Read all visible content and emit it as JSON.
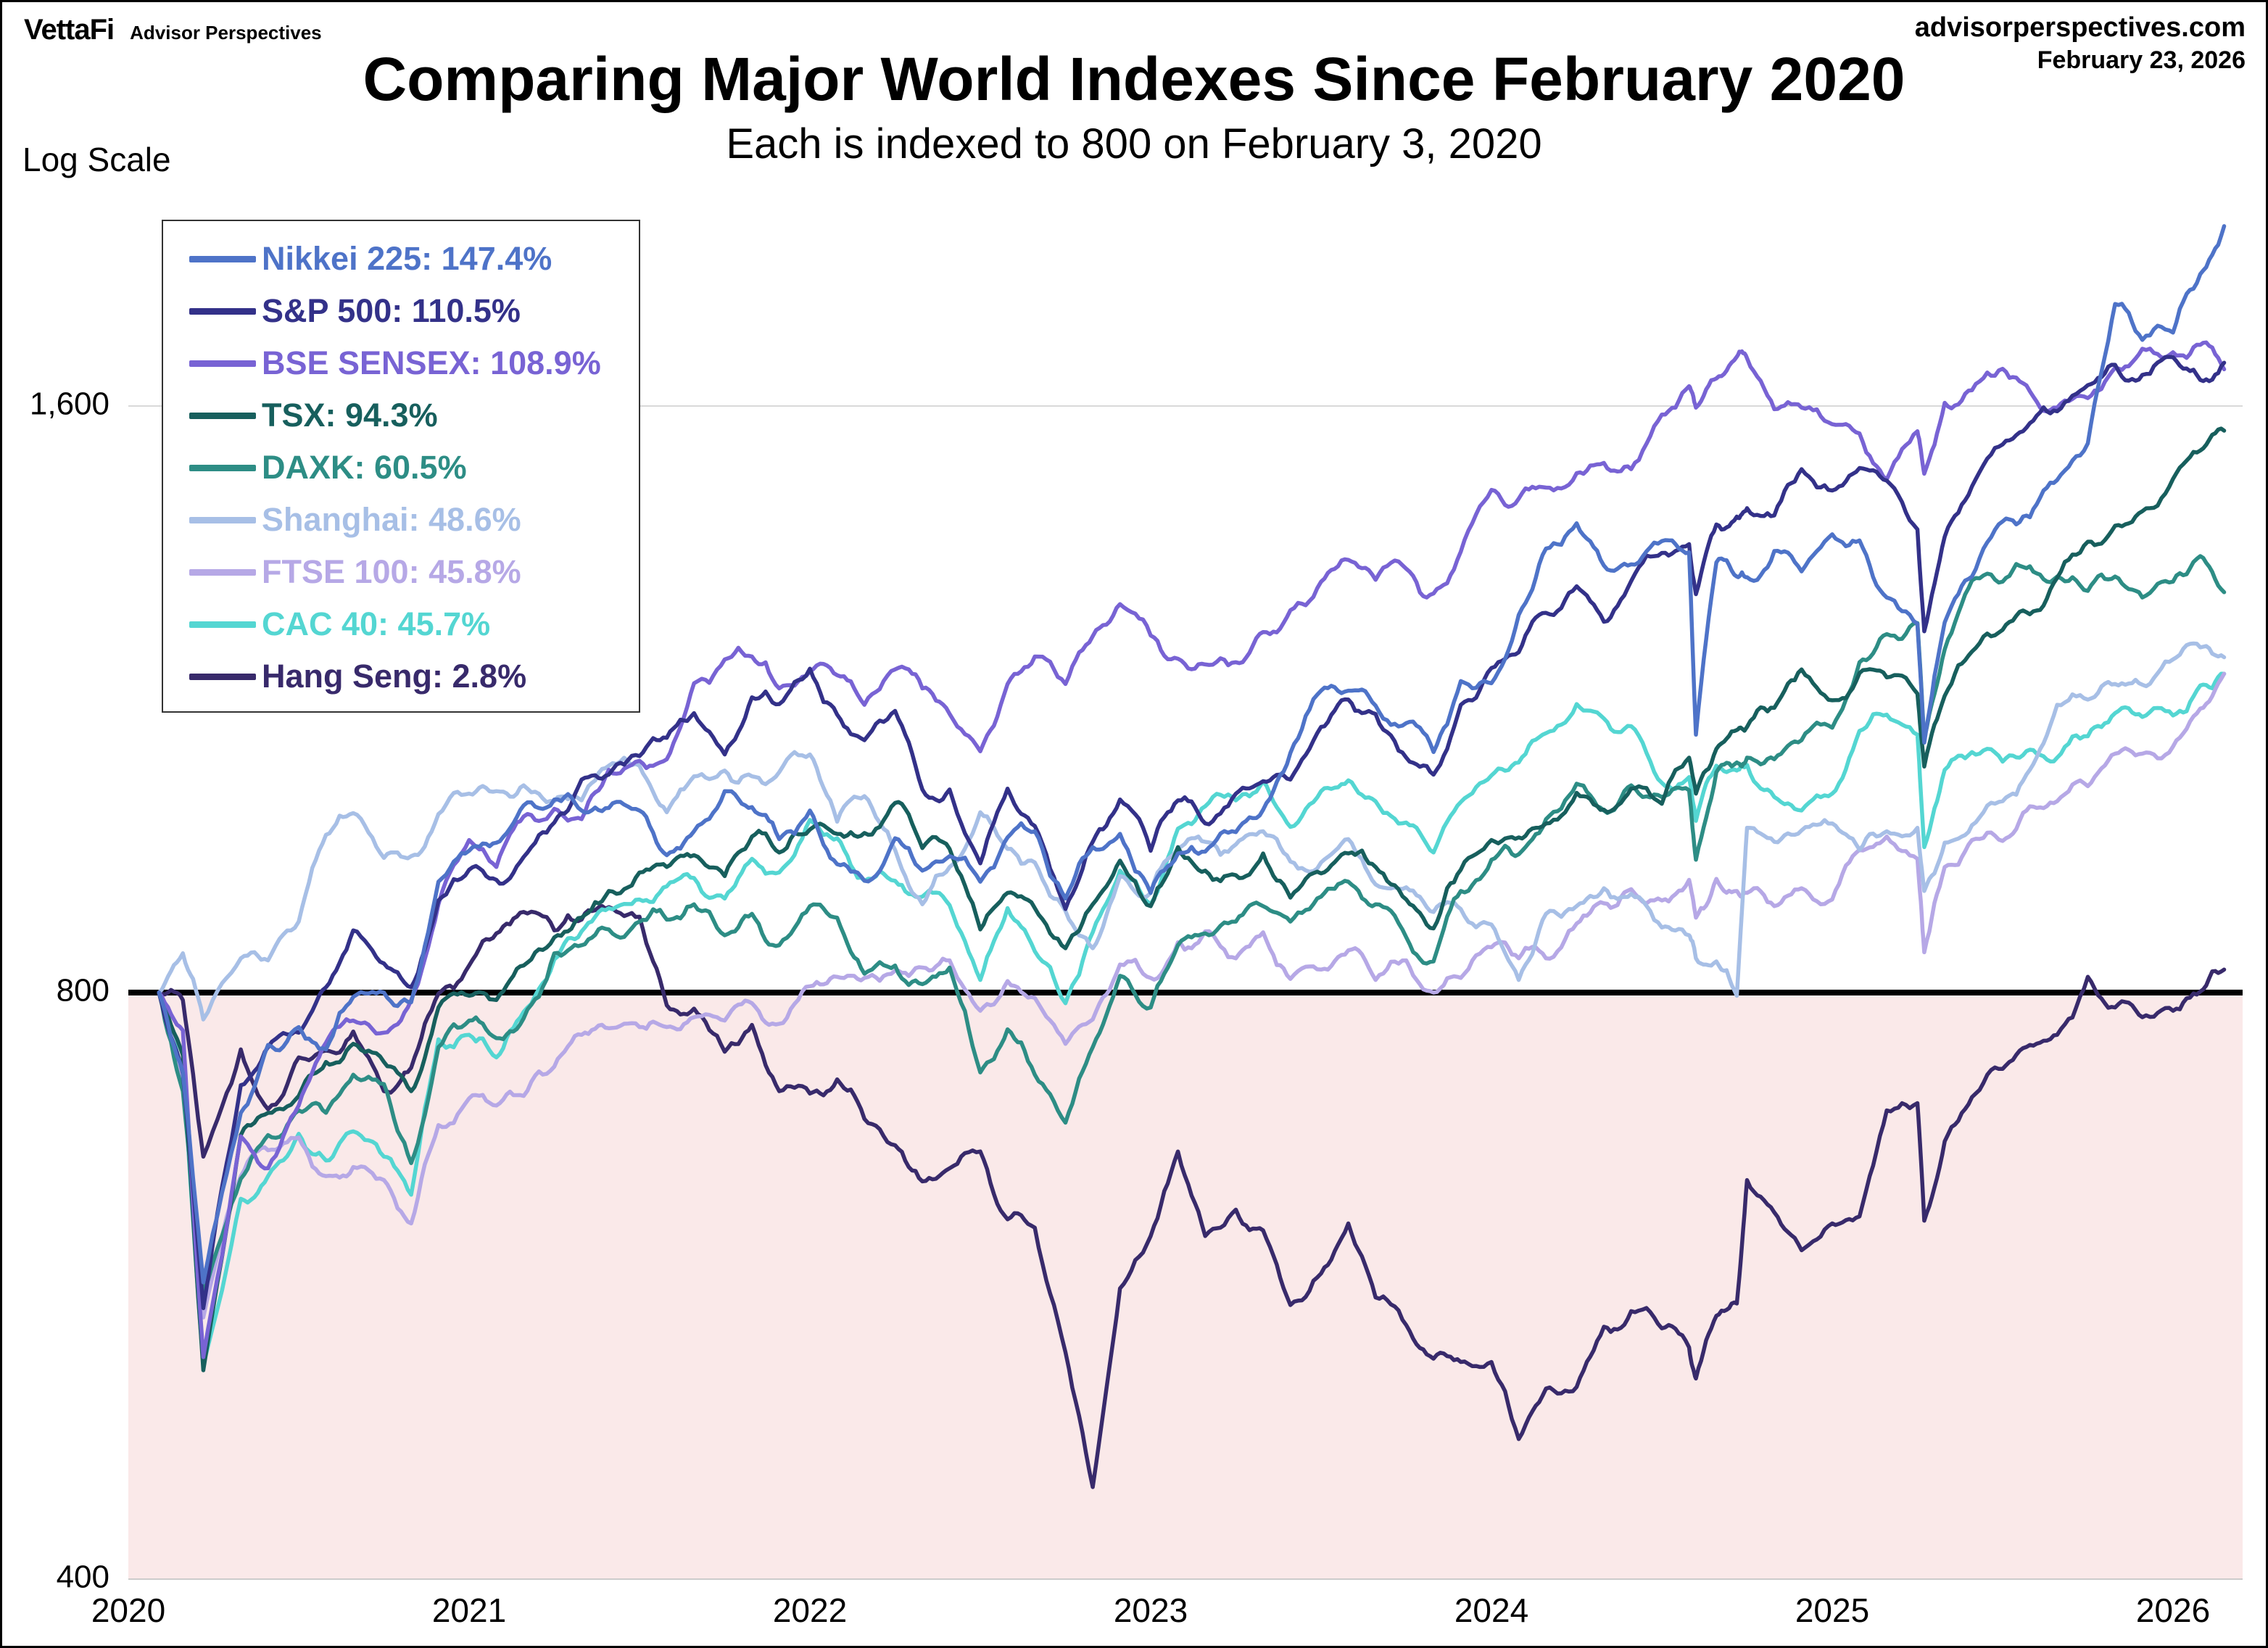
{
  "header": {
    "logo_primary": "VettaFi",
    "logo_secondary": "Advisor Perspectives",
    "site": "advisorperspectives.com",
    "date": "February 23, 2026",
    "title": "Comparing Major World Indexes Since February 2020",
    "subtitle": "Each is indexed to 800 on February 3, 2020",
    "scale_label": "Log Scale"
  },
  "chart_data": {
    "type": "line",
    "y_scale": "log",
    "title": "Comparing Major World Indexes Since February 2020",
    "subtitle": "Each is indexed to 800 on February 3, 2020",
    "baseline": 800,
    "baseline_color": "#000000",
    "below_baseline_fill": "#fae9e9",
    "grid_color": "#d9d9d9",
    "ylim": [
      400,
      2200
    ],
    "legend_position": "top-left",
    "y_ticks": [
      {
        "label": "1,600",
        "value": 1600
      },
      {
        "label": "800",
        "value": 800
      },
      {
        "label": "400",
        "value": 400
      }
    ],
    "x_ticks": [
      {
        "label": "2020",
        "value": 2020
      },
      {
        "label": "2021",
        "value": 2021
      },
      {
        "label": "2022",
        "value": 2022
      },
      {
        "label": "2023",
        "value": 2023
      },
      {
        "label": "2024",
        "value": 2024
      },
      {
        "label": "2025",
        "value": 2025
      },
      {
        "label": "2026",
        "value": 2026
      }
    ],
    "x_years": [
      2020.09,
      2020.16,
      2020.22,
      2020.33,
      2020.41,
      2020.5,
      2020.58,
      2020.66,
      2020.75,
      2020.83,
      2020.91,
      2021.0,
      2021.08,
      2021.16,
      2021.25,
      2021.33,
      2021.41,
      2021.5,
      2021.58,
      2021.66,
      2021.75,
      2021.83,
      2021.91,
      2022.0,
      2022.08,
      2022.16,
      2022.25,
      2022.33,
      2022.41,
      2022.5,
      2022.58,
      2022.66,
      2022.75,
      2022.83,
      2022.91,
      2023.0,
      2023.08,
      2023.16,
      2023.25,
      2023.33,
      2023.41,
      2023.5,
      2023.58,
      2023.66,
      2023.75,
      2023.83,
      2023.91,
      2024.0,
      2024.08,
      2024.16,
      2024.25,
      2024.33,
      2024.41,
      2024.5,
      2024.58,
      2024.6,
      2024.66,
      2024.72,
      2024.75,
      2024.83,
      2024.91,
      2025.0,
      2025.08,
      2025.16,
      2025.25,
      2025.27,
      2025.33,
      2025.41,
      2025.5,
      2025.58,
      2025.66,
      2025.75,
      2025.83,
      2025.91,
      2026.0,
      2026.08,
      2026.15
    ],
    "series": [
      {
        "name": "Nikkei 225",
        "change": "147.4%",
        "label": "Nikkei 225: 147.4%",
        "color": "#4e73c8",
        "values": [
          800,
          728,
          568,
          694,
          752,
          768,
          748,
          796,
          800,
          791,
          912,
          946,
          955,
          998,
          1005,
          992,
          995,
          992,
          941,
          968,
          1015,
          996,
          959,
          992,
          931,
          913,
          960,
          924,
          940,
          912,
          961,
          968,
          894,
          950,
          965,
          900,
          943,
          945,
          967,
          993,
          1062,
          1143,
          1143,
          1123,
          1100,
          1063,
          1156,
          1153,
          1250,
          1352,
          1393,
          1325,
          1327,
          1364,
          1346,
          1085,
          1330,
          1308,
          1307,
          1348,
          1316,
          1375,
          1365,
          1276,
          1237,
          1075,
          1239,
          1308,
          1396,
          1403,
          1466,
          1531,
          1805,
          1730,
          1745,
          1870,
          1979
        ]
      },
      {
        "name": "S&P 500",
        "change": "110.5%",
        "label": "S&P 500: 110.5%",
        "color": "#333189",
        "values": [
          800,
          727,
          551,
          717,
          750,
          763,
          805,
          861,
          828,
          805,
          892,
          925,
          914,
          939,
          978,
          1029,
          1035,
          1058,
          1081,
          1113,
          1060,
          1134,
          1125,
          1173,
          1111,
          1078,
          1116,
          1017,
          1017,
          932,
          1018,
          974,
          883,
          956,
          1005,
          946,
          1004,
          977,
          1012,
          1027,
          1029,
          1095,
          1131,
          1112,
          1056,
          1035,
          1124,
          1174,
          1196,
          1253,
          1293,
          1240,
          1301,
          1345,
          1359,
          1281,
          1391,
          1404,
          1418,
          1406,
          1485,
          1448,
          1487,
          1465,
          1383,
          1226,
          1371,
          1455,
          1529,
          1568,
          1590,
          1640,
          1680,
          1660,
          1695,
          1650,
          1684
        ]
      },
      {
        "name": "BSE SENSEX",
        "change": "108.9%",
        "label": "BSE SENSEX: 108.9%",
        "color": "#7863d4",
        "values": [
          800,
          765,
          520,
          675,
          650,
          700,
          754,
          774,
          763,
          793,
          888,
          958,
          928,
          985,
          994,
          982,
          1041,
          1052,
          1054,
          1153,
          1186,
          1190,
          1146,
          1169,
          1164,
          1124,
          1172,
          1146,
          1112,
          1064,
          1152,
          1190,
          1152,
          1219,
          1266,
          1220,
          1187,
          1179,
          1182,
          1225,
          1257,
          1300,
          1334,
          1303,
          1320,
          1282,
          1347,
          1449,
          1434,
          1453,
          1478,
          1496,
          1485,
          1584,
          1638,
          1597,
          1653,
          1696,
          1693,
          1594,
          1597,
          1566,
          1549,
          1467,
          1553,
          1477,
          1606,
          1630,
          1672,
          1628,
          1597,
          1615,
          1674,
          1712,
          1705,
          1720,
          1671
        ]
      },
      {
        "name": "TSX",
        "change": "94.3%",
        "label": "TSX: 94.3%",
        "color": "#175f5d",
        "values": [
          800,
          743,
          512,
          676,
          694,
          708,
          737,
          753,
          737,
          712,
          786,
          797,
          793,
          826,
          854,
          874,
          902,
          922,
          928,
          941,
          918,
          962,
          944,
          970,
          965,
          966,
          1001,
          949,
          948,
          862,
          900,
          884,
          843,
          888,
          935,
          886,
          950,
          924,
          919,
          943,
          895,
          921,
          943,
          928,
          893,
          863,
          925,
          958,
          961,
          977,
          1013,
          993,
          1018,
          1000,
          1056,
          1012,
          1067,
          1091,
          1095,
          1120,
          1172,
          1130,
          1167,
          1161,
          1139,
          1045,
          1136,
          1197,
          1228,
          1251,
          1306,
          1363,
          1389,
          1413,
          1468,
          1518,
          1554
        ]
      },
      {
        "name": "DAXK",
        "change": "60.5%",
        "label": "DAXK: 60.5%",
        "color": "#2d8d85",
        "values": [
          800,
          712,
          560,
          642,
          676,
          696,
          694,
          726,
          718,
          654,
          750,
          774,
          758,
          776,
          838,
          846,
          862,
          870,
          872,
          888,
          856,
          878,
          846,
          886,
          874,
          818,
          826,
          808,
          824,
          728,
          766,
          726,
          686,
          750,
          816,
          786,
          846,
          858,
          870,
          886,
          870,
          896,
          912,
          888,
          854,
          830,
          902,
          936,
          942,
          982,
          1024,
          992,
          1022,
          1008,
          1016,
          936,
          1038,
          1050,
          1056,
          1054,
          1078,
          1094,
          1182,
          1222,
          1238,
          1080,
          1200,
          1302,
          1300,
          1324,
          1308,
          1286,
          1308,
          1276,
          1300,
          1340,
          1284
        ]
      },
      {
        "name": "Shanghai",
        "change": "48.6%",
        "label": "Shanghai: 48.6%",
        "color": "#a7bfe6",
        "values": [
          800,
          838,
          775,
          833,
          831,
          870,
          964,
          989,
          938,
          940,
          988,
          1012,
          1015,
          1022,
          1003,
          1004,
          1046,
          1046,
          990,
          1033,
          1040,
          1033,
          1038,
          1060,
          979,
          1009,
          947,
          888,
          928,
          990,
          948,
          933,
          881,
          843,
          918,
          900,
          949,
          956,
          953,
          968,
          934,
          933,
          959,
          909,
          906,
          880,
          883,
          867,
          812,
          878,
          886,
          905,
          899,
          864,
          856,
          833,
          830,
          797,
          972,
          956,
          969,
          977,
          947,
          968,
          972,
          902,
          955,
          975,
          1003,
          1041,
          1124,
          1131,
          1152,
          1151,
          1186,
          1203,
          1189
        ]
      },
      {
        "name": "FTSE 100",
        "change": "45.8%",
        "label": "FTSE 100: 45.8%",
        "color": "#b6a8e6",
        "values": [
          800,
          719,
          545,
          644,
          664,
          674,
          644,
          651,
          641,
          609,
          684,
          706,
          700,
          708,
          733,
          761,
          767,
          768,
          768,
          777,
          774,
          790,
          771,
          806,
          815,
          814,
          821,
          824,
          831,
          783,
          811,
          795,
          753,
          775,
          827,
          814,
          849,
          860,
          833,
          859,
          813,
          822,
          841,
          812,
          831,
          800,
          814,
          844,
          833,
          833,
          868,
          889,
          904,
          892,
          914,
          874,
          915,
          902,
          900,
          886,
          905,
          893,
          947,
          962,
          937,
          839,
          928,
          958,
          957,
          997,
          1003,
          1021,
          1061,
          1061,
          1070,
          1119,
          1166
        ]
      },
      {
        "name": "CAC 40",
        "change": "45.7%",
        "label": "CAC 40: 45.7%",
        "color": "#54d6d2",
        "values": [
          800,
          728,
          515,
          627,
          644,
          677,
          656,
          679,
          659,
          630,
          757,
          761,
          741,
          782,
          832,
          860,
          884,
          893,
          907,
          916,
          894,
          937,
          922,
          981,
          960,
          913,
          913,
          896,
          887,
          812,
          884,
          840,
          790,
          859,
          924,
          888,
          971,
          997,
          1004,
          1027,
          973,
          1015,
          1028,
          1003,
          978,
          944,
          1002,
          1034,
          1050,
          1087,
          1125,
          1106,
          1096,
          1025,
          1032,
          980,
          1046,
          1040,
          1047,
          1008,
          992,
          1012,
          1090,
          1111,
          1085,
          950,
          1041,
          1063,
          1051,
          1066,
          1056,
          1083,
          1113,
          1108,
          1110,
          1150,
          1166
        ]
      },
      {
        "name": "Hang Seng",
        "change": "2.8%",
        "label": "Hang Seng: 2.8%",
        "color": "#382a6b",
        "values": [
          800,
          793,
          659,
          748,
          697,
          741,
          747,
          764,
          712,
          732,
          799,
          826,
          858,
          880,
          861,
          872,
          885,
          875,
          788,
          785,
          746,
          770,
          712,
          710,
          722,
          689,
          668,
          640,
          650,
          663,
          612,
          606,
          523,
          446,
          564,
          600,
          663,
          600,
          619,
          604,
          553,
          574,
          609,
          558,
          540,
          519,
          517,
          517,
          472,
          501,
          502,
          539,
          549,
          538,
          526,
          507,
          546,
          554,
          641,
          617,
          590,
          609,
          614,
          696,
          702,
          611,
          671,
          707,
          731,
          752,
          761,
          815,
          786,
          777,
          783,
          801,
          822
        ]
      }
    ]
  }
}
